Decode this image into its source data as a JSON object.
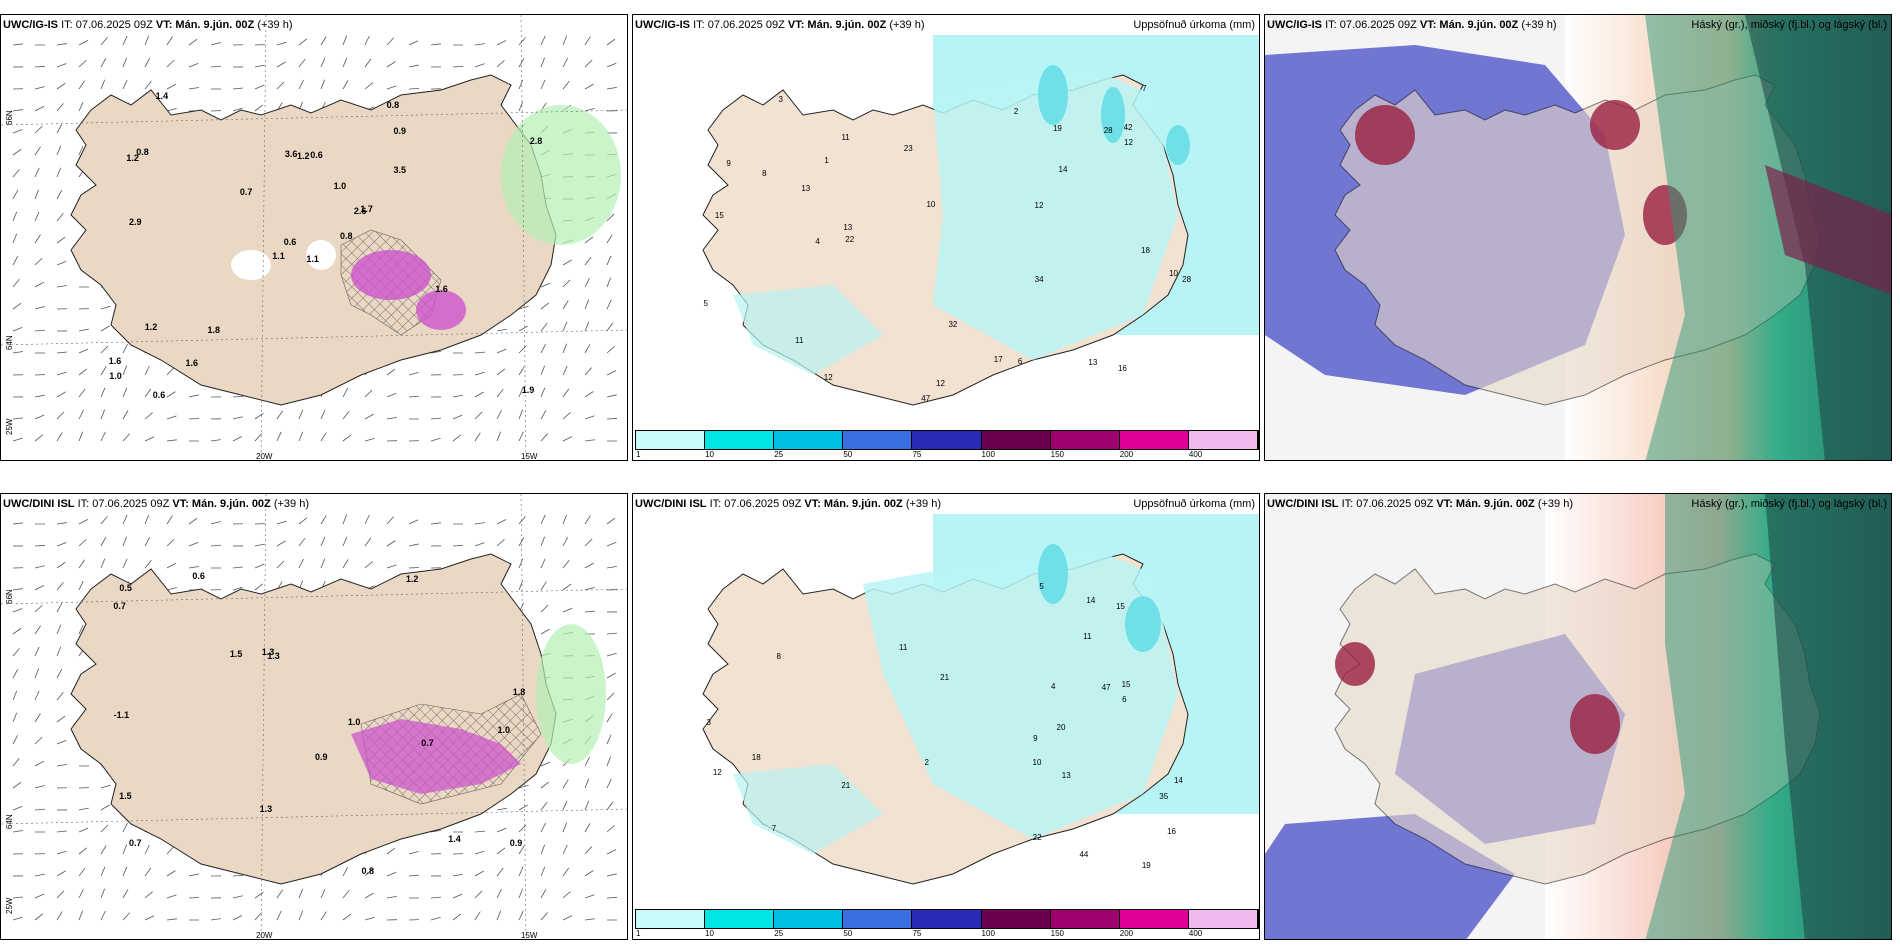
{
  "panels": {
    "top_left": {
      "model": "UWC/IG-IS",
      "it": "IT: 07.06.2025 09Z",
      "vt_label": "VT:",
      "vt": "Mán. 9.jún. 00Z",
      "lead": "(+39 h)"
    },
    "top_mid": {
      "model": "UWC/IG-IS",
      "it": "IT: 07.06.2025 09Z",
      "vt_label": "VT:",
      "vt": "Mán. 9.jún. 00Z",
      "lead": "(+39 h)",
      "right": "Uppsöfnuð úrkoma (mm)"
    },
    "top_right": {
      "model": "UWC/IG-IS",
      "it": "IT: 07.06.2025 09Z",
      "vt_label": "VT:",
      "vt": "Mán. 9.jún. 00Z",
      "lead": "(+39 h)",
      "right": "Háský (gr.), miðský (fj.bl.) og lágský (bl.)"
    },
    "bot_left": {
      "model": "UWC/DINI ISL",
      "it": "IT: 07.06.2025 09Z",
      "vt_label": "VT:",
      "vt": "Mán. 9.jún. 00Z",
      "lead": "(+39 h)"
    },
    "bot_mid": {
      "model": "UWC/DINI ISL",
      "it": "IT: 07.06.2025 09Z",
      "vt_label": "VT:",
      "vt": "Mán. 9.jún. 00Z",
      "lead": "(+39 h)",
      "right": "Uppsöfnuð úrkoma (mm)"
    },
    "bot_right": {
      "model": "UWC/DINI ISL",
      "it": "IT: 07.06.2025 09Z",
      "vt_label": "VT:",
      "vt": "Mán. 9.jún. 00Z",
      "lead": "(+39 h)",
      "right": "Háský (gr.), miðský (fj.bl.) og lágský (bl.)"
    }
  },
  "axes": {
    "lon_20": "20W",
    "lon_15": "15W",
    "lat_66": "66N",
    "lat_64": "64N",
    "lat_25": "25W"
  },
  "colorbar": {
    "colors": [
      "#c8fafa",
      "#00e5e5",
      "#00bfe6",
      "#3a6fe0",
      "#2a2ab8",
      "#6b0050",
      "#a0006e",
      "#e0009a",
      "#f2b8f0"
    ],
    "ticks": [
      "1",
      "10",
      "25",
      "50",
      "75",
      "100",
      "150",
      "200",
      "400"
    ]
  },
  "labels_tl": [
    "1.1",
    "1.2",
    "0.6",
    "1.6",
    "2.6",
    "1.8",
    "0.8",
    "0.6",
    "0.9",
    "0.8",
    "1.4",
    "1.9",
    "2.9",
    "2.8",
    "1.1",
    "3.5",
    "0.6",
    "3.6",
    "1.0",
    "1.2",
    "0.7",
    "1.0",
    "1.6",
    "1.2",
    "1.7",
    "1.6",
    "0.8"
  ],
  "labels_bl": [
    "0.7",
    "1.0",
    "0.7",
    "0.6",
    "1.3",
    "1.4",
    "1.5",
    "1.2",
    "1.5",
    "0.8",
    "0.7",
    "-1.1",
    "0.5",
    "0.9",
    "1.3",
    "1.8",
    "0.9",
    "1.0",
    "1.3"
  ],
  "labels_tm": [
    "9",
    "1",
    "12",
    "12",
    "28",
    "47",
    "34",
    "22",
    "42",
    "28",
    "10",
    "11",
    "14",
    "11",
    "15",
    "12",
    "13",
    "23",
    "16",
    "17",
    "13",
    "18",
    "10",
    "32",
    "19",
    "13",
    "12",
    "2",
    "3",
    "4",
    "5",
    "6",
    "7",
    "8"
  ],
  "labels_bm": [
    "10",
    "14",
    "47",
    "35",
    "22",
    "11",
    "15",
    "21",
    "16",
    "44",
    "20",
    "9",
    "12",
    "13",
    "21",
    "19",
    "15",
    "18",
    "14",
    "11",
    "2",
    "3",
    "4",
    "5",
    "6",
    "7",
    "8"
  ]
}
